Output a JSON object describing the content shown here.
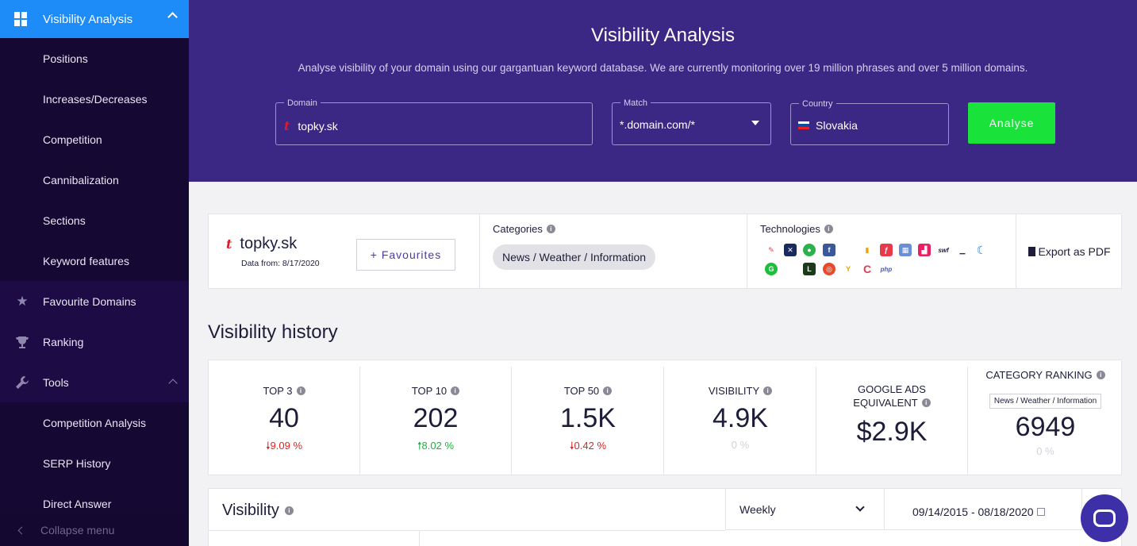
{
  "sidebar": {
    "header": "Visibility Analysis",
    "sub_items": [
      {
        "label": "Positions"
      },
      {
        "label": "Increases/Decreases"
      },
      {
        "label": "Competition"
      },
      {
        "label": "Cannibalization"
      },
      {
        "label": "Sections"
      },
      {
        "label": "Keyword features"
      }
    ],
    "main_items": [
      {
        "label": "Favourite Domains",
        "icon": "star-icon"
      },
      {
        "label": "Ranking",
        "icon": "trophy-icon"
      },
      {
        "label": "Tools",
        "icon": "wrench-icon"
      }
    ],
    "tool_items": [
      {
        "label": "Competition Analysis"
      },
      {
        "label": "SERP History"
      },
      {
        "label": "Direct Answer"
      }
    ],
    "collapse": "Collapse menu"
  },
  "hero": {
    "title": "Visibility Analysis",
    "subtitle": "Analyse visibility of your domain using our gargantuan keyword database. We are currently monitoring over 19 million phrases and over 5 million domains.",
    "domain_label": "Domain",
    "domain_value": "topky.sk",
    "match_label": "Match",
    "match_value": "*.domain.com/*",
    "country_label": "Country",
    "country_value": "Slovakia",
    "analyse": "Analyse"
  },
  "domain_card": {
    "name": "topky.sk",
    "date": "Data from: 8/17/2020",
    "favourites": "+ Favourites",
    "categories_label": "Categories",
    "category": "News / Weather / Information",
    "technologies_label": "Technologies",
    "export": "Export as PDF"
  },
  "visibility_history": {
    "title": "Visibility history",
    "stats": [
      {
        "label": "TOP 3",
        "value": "40",
        "change": "9.09 %",
        "dir": "down"
      },
      {
        "label": "TOP 10",
        "value": "202",
        "change": "8.02 %",
        "dir": "up"
      },
      {
        "label": "TOP 50",
        "value": "1.5K",
        "change": "0.42 %",
        "dir": "down"
      },
      {
        "label": "VISIBILITY",
        "value": "4.9K",
        "change": "0 %",
        "dir": "zero"
      },
      {
        "label1": "GOOGLE ADS",
        "label2": "EQUIVALENT",
        "value": "$2.9K"
      },
      {
        "label": "CATEGORY RANKING",
        "category": "News / Weather / Information",
        "value": "6949",
        "change": "0 %",
        "dir": "zero"
      }
    ]
  },
  "visibility": {
    "title": "Visibility",
    "period": "Weekly",
    "date_range": "09/14/2015 - 08/18/2020"
  },
  "colors": {
    "sidebar_bg": "#1c0b45",
    "sidebar_active": "#1d8cf8",
    "hero_bg": "#3a2884",
    "analyse_button": "#19e23a",
    "negative": "#e02424",
    "positive": "#19b43a"
  }
}
